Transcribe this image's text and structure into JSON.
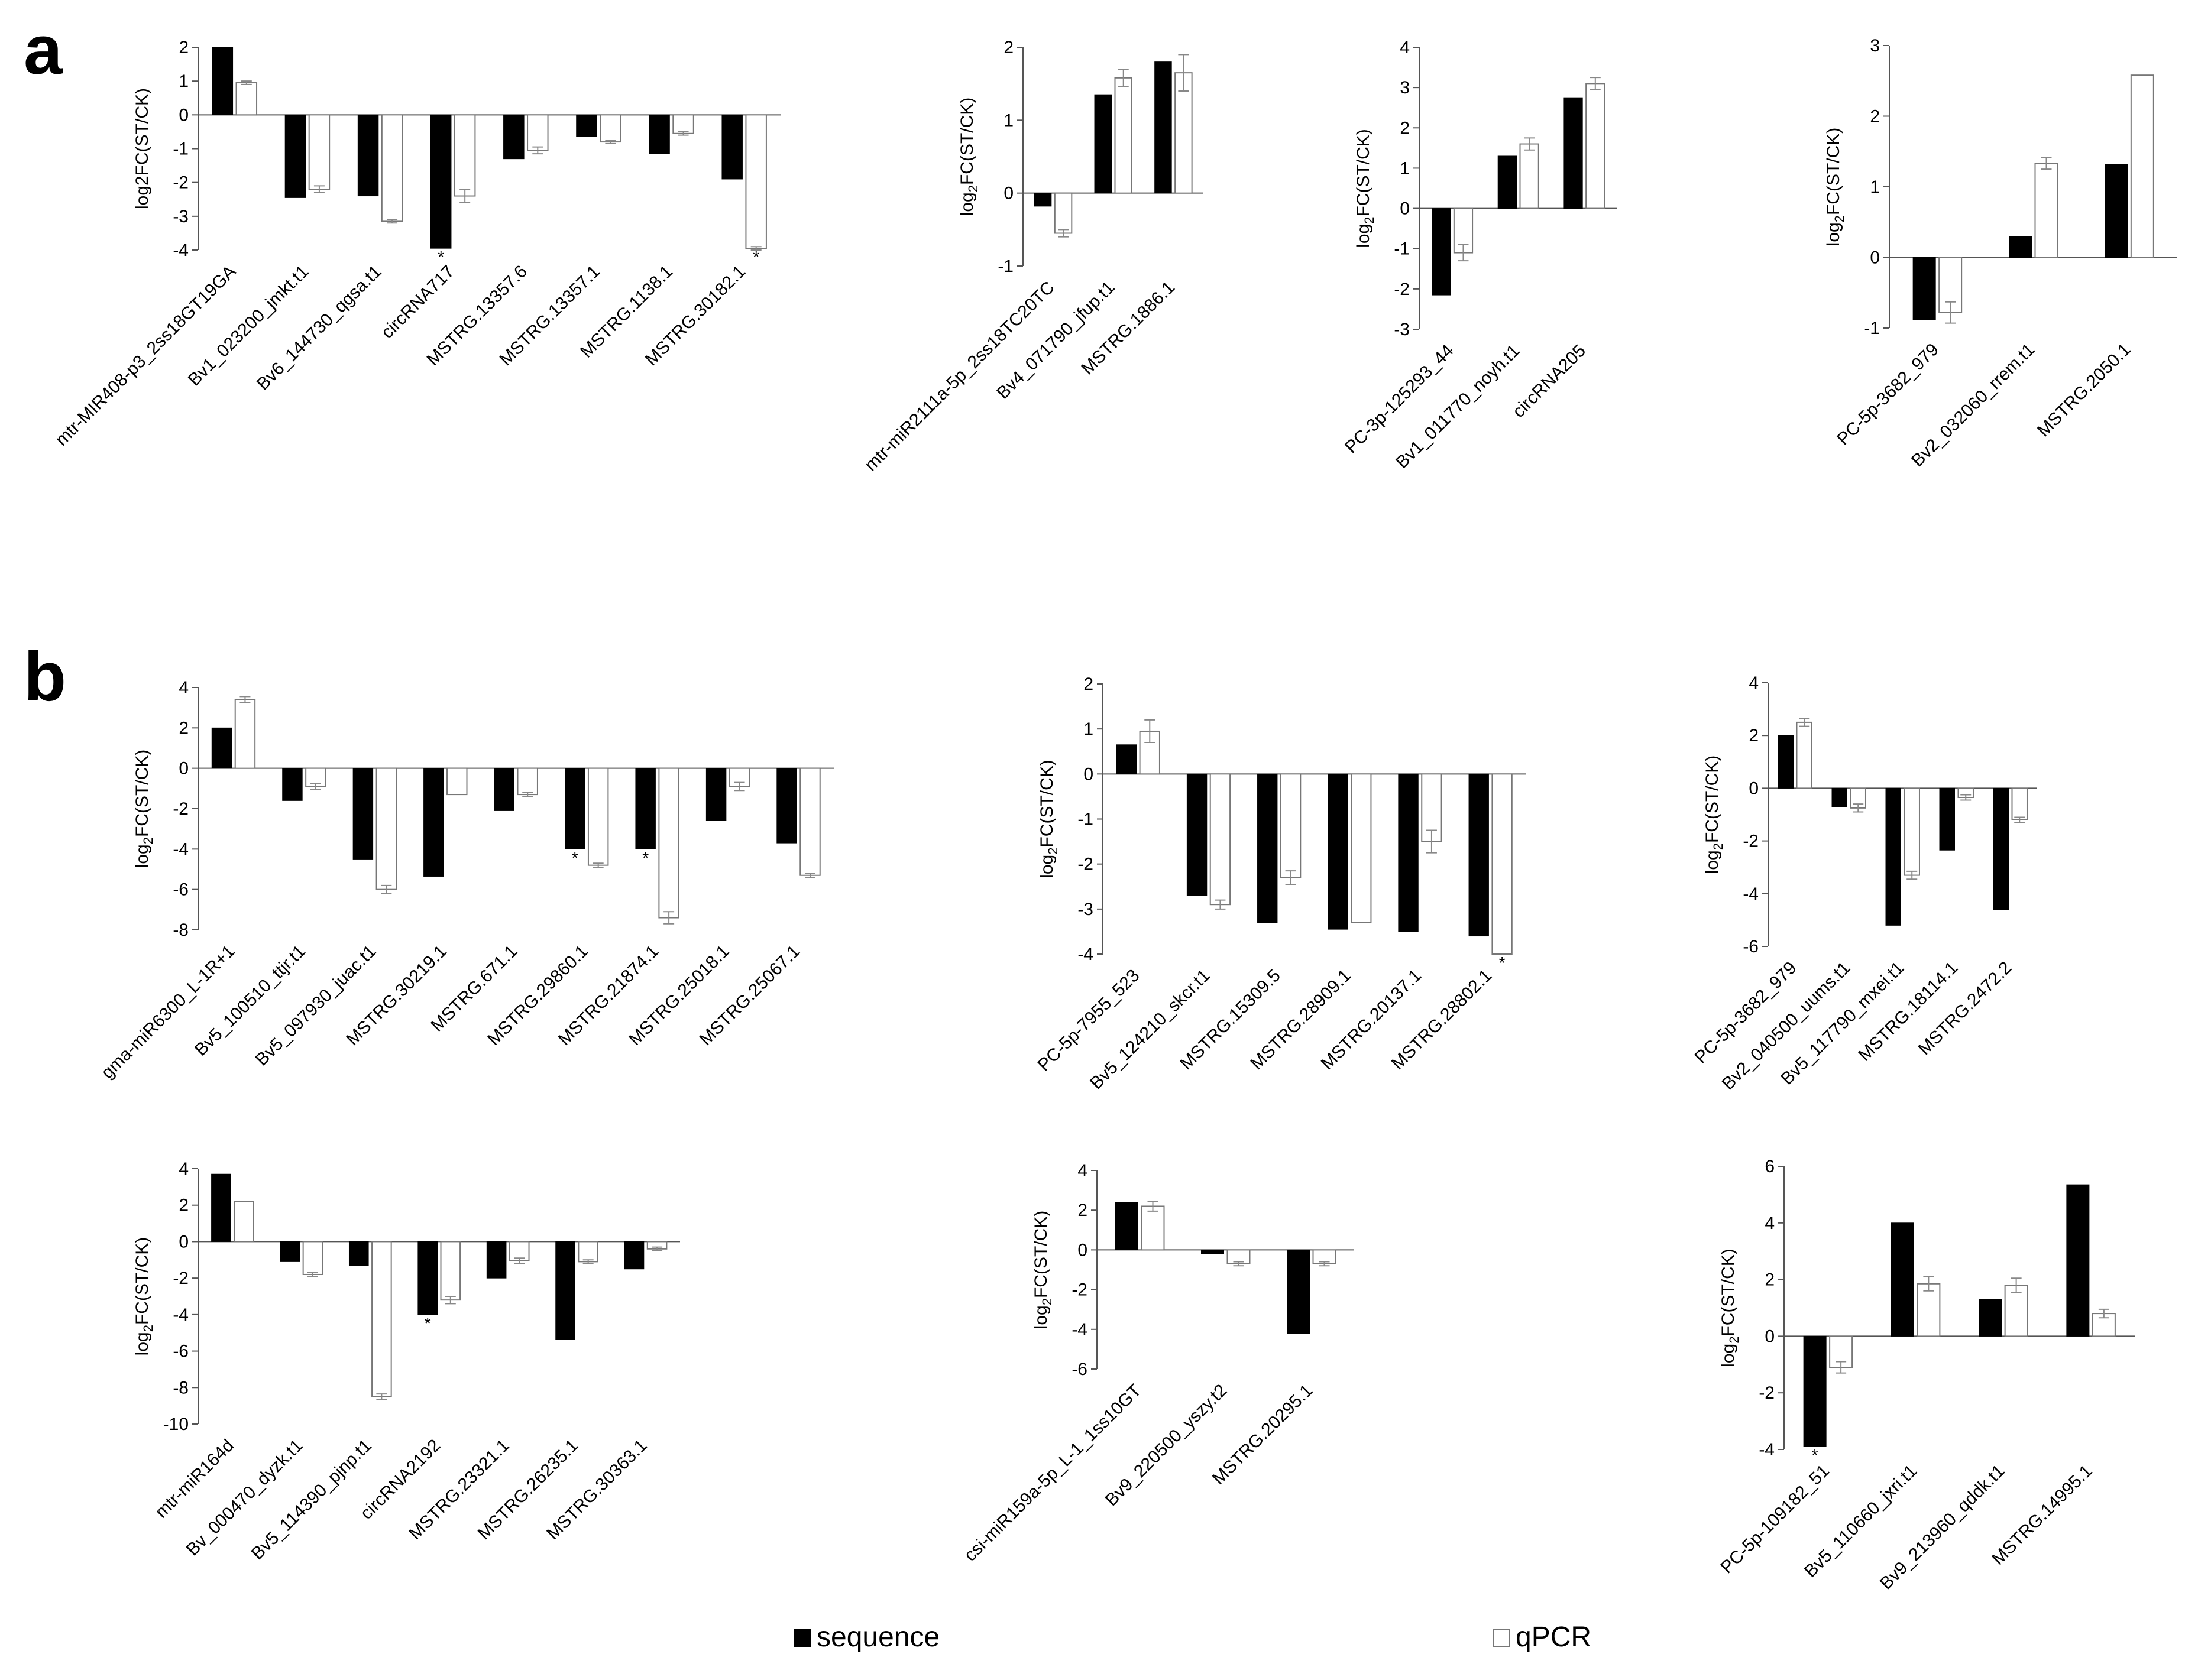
{
  "figure": {
    "panel_labels": [
      "a",
      "b"
    ],
    "legend": {
      "items": [
        {
          "label": "sequence",
          "fill": "#000000"
        },
        {
          "label": "qPCR",
          "fill": "#ffffff"
        }
      ]
    },
    "colors": {
      "sequence": "#000000",
      "qpcr": "#ffffff",
      "axis": "#555555"
    }
  },
  "chart_data": [
    {
      "panel": "a",
      "type": "bar",
      "ylabel": "log2FC(ST/CK)",
      "ylabel_sub": false,
      "ylim": [
        -4,
        2
      ],
      "yticks": [
        2,
        1,
        0,
        -1,
        -2,
        -3,
        -4
      ],
      "categories": [
        "mtr-MIR408-p3_2ss18GT19GA",
        "Bv1_023200_jmkt.t1",
        "Bv6_144730_qgsa.t1",
        "circRNA717",
        "MSTRG.13357.6",
        "MSTRG.13357.1",
        "MSTRG.1138.1",
        "MSTRG.30182.1"
      ],
      "series": [
        {
          "name": "sequence",
          "values": [
            2.0,
            -2.45,
            -2.4,
            -3.95,
            -1.3,
            -0.65,
            -1.15,
            -1.9
          ]
        },
        {
          "name": "qPCR",
          "values": [
            0.95,
            -2.2,
            -3.15,
            -2.4,
            -1.05,
            -0.8,
            -0.55,
            -3.95
          ]
        }
      ],
      "errors": [
        0.05,
        0.1,
        0.05,
        0.2,
        0.1,
        0.05,
        0.05,
        0.05
      ],
      "stars": [
        {
          "category": 3,
          "series": 0
        },
        {
          "category": 7,
          "series": 1
        }
      ]
    },
    {
      "panel": "a",
      "type": "bar",
      "ylabel": "log2FC(ST/CK)",
      "ylabel_sub": true,
      "ylim": [
        -1,
        2
      ],
      "yticks": [
        2,
        1,
        0,
        -1
      ],
      "categories": [
        "mtr-miR2111a-5p_2ss18TC20TC",
        "Bv4_071790_jfup.t1",
        "MSTRG.1886.1"
      ],
      "series": [
        {
          "name": "sequence",
          "values": [
            -0.18,
            1.35,
            1.8
          ]
        },
        {
          "name": "qPCR",
          "values": [
            -0.55,
            1.58,
            1.65
          ]
        }
      ],
      "errors": [
        0.05,
        0.12,
        0.25
      ],
      "stars": []
    },
    {
      "panel": "a",
      "type": "bar",
      "ylabel": "log2FC(ST/CK)",
      "ylabel_sub": true,
      "ylim": [
        -3,
        4
      ],
      "yticks": [
        4,
        3,
        2,
        1,
        0,
        -1,
        -2,
        -3
      ],
      "categories": [
        "PC-3p-125293_44",
        "Bv1_011770_noyh.t1",
        "circRNA205"
      ],
      "series": [
        {
          "name": "sequence",
          "values": [
            -2.15,
            1.3,
            2.75
          ]
        },
        {
          "name": "qPCR",
          "values": [
            -1.1,
            1.6,
            3.1
          ]
        }
      ],
      "errors": [
        0.2,
        0.15,
        0.15
      ],
      "stars": []
    },
    {
      "panel": "a",
      "type": "bar",
      "ylabel": "log2FC(ST/CK)",
      "ylabel_sub": true,
      "ylim": [
        -1,
        3
      ],
      "yticks": [
        3,
        2,
        1,
        0,
        -1
      ],
      "categories": [
        "PC-5p-3682_979",
        "Bv2_032060_rrem.t1",
        "MSTRG.2050.1"
      ],
      "series": [
        {
          "name": "sequence",
          "values": [
            -0.88,
            0.3,
            1.32
          ]
        },
        {
          "name": "qPCR",
          "values": [
            -0.78,
            1.33,
            2.58
          ]
        }
      ],
      "errors": [
        0.15,
        0.08,
        0.0
      ],
      "stars": []
    },
    {
      "panel": "b",
      "type": "bar",
      "ylabel": "log2FC(ST/CK)",
      "ylabel_sub": true,
      "ylim": [
        -8,
        4
      ],
      "yticks": [
        4,
        2,
        0,
        -2,
        -4,
        -6,
        -8
      ],
      "categories": [
        "gma-miR6300_L-1R+1",
        "Bv5_100510_ttjr.t1",
        "Bv5_097930_juac.t1",
        "MSTRG.30219.1",
        "MSTRG.671.1",
        "MSTRG.29860.1",
        "MSTRG.21874.1",
        "MSTRG.25018.1",
        "MSTRG.25067.1"
      ],
      "series": [
        {
          "name": "sequence",
          "values": [
            2.0,
            -1.6,
            -4.5,
            -5.35,
            -2.1,
            -4.0,
            -4.0,
            -2.6,
            -3.7
          ]
        },
        {
          "name": "qPCR",
          "values": [
            3.4,
            -0.9,
            -6.0,
            -1.3,
            -1.3,
            -4.8,
            -7.4,
            -0.9,
            -5.3
          ]
        }
      ],
      "errors": [
        0.15,
        0.15,
        0.2,
        0.0,
        0.1,
        0.1,
        0.3,
        0.2,
        0.1
      ],
      "stars": [
        {
          "category": 5,
          "series": 0
        },
        {
          "category": 6,
          "series": 0
        }
      ]
    },
    {
      "panel": "b",
      "type": "bar",
      "ylabel": "log2FC(ST/CK)",
      "ylabel_sub": true,
      "ylim": [
        -4,
        2
      ],
      "yticks": [
        2,
        1,
        0,
        -1,
        -2,
        -3,
        -4
      ],
      "categories": [
        "PC-5p-7955_523",
        "Bv5_124210_skcr.t1",
        "MSTRG.15309.5",
        "MSTRG.28909.1",
        "MSTRG.20137.1",
        "MSTRG.28802.1"
      ],
      "series": [
        {
          "name": "sequence",
          "values": [
            0.65,
            -2.7,
            -3.3,
            -3.45,
            -3.5,
            -3.6
          ]
        },
        {
          "name": "qPCR",
          "values": [
            0.95,
            -2.9,
            -2.3,
            -3.3,
            -1.5,
            -4.0
          ]
        }
      ],
      "errors": [
        0.25,
        0.1,
        0.15,
        0.0,
        0.25,
        0.0
      ],
      "stars": [
        {
          "category": 5,
          "series": 1
        }
      ]
    },
    {
      "panel": "b",
      "type": "bar",
      "ylabel": "log2FC(ST/CK)",
      "ylabel_sub": true,
      "ylim": [
        -6,
        4
      ],
      "yticks": [
        4,
        2,
        0,
        -2,
        -4,
        -6
      ],
      "categories": [
        "PC-5p-3682_979",
        "Bv2_040500_uums.t1",
        "Bv5_117790_mxei.t1",
        "MSTRG.18114.1",
        "MSTRG.2472.2"
      ],
      "series": [
        {
          "name": "sequence",
          "values": [
            2.0,
            -0.7,
            -5.2,
            -2.35,
            -4.6
          ]
        },
        {
          "name": "qPCR",
          "values": [
            2.5,
            -0.75,
            -3.3,
            -0.35,
            -1.2
          ]
        }
      ],
      "errors": [
        0.15,
        0.15,
        0.15,
        0.1,
        0.1
      ],
      "stars": []
    },
    {
      "panel": "b",
      "type": "bar",
      "ylabel": "log2FC(ST/CK)",
      "ylabel_sub": true,
      "ylim": [
        -10,
        4
      ],
      "yticks": [
        4,
        2,
        0,
        -2,
        -4,
        -6,
        -8,
        -10
      ],
      "categories": [
        "mtr-miR164d",
        "Bv_000470_dyzk.t1",
        "Bv5_114390_pjnp.t1",
        "circRNA2192",
        "MSTRG.23321.1",
        "MSTRG.26235.1",
        "MSTRG.30363.1"
      ],
      "series": [
        {
          "name": "sequence",
          "values": [
            3.7,
            -1.1,
            -1.3,
            -4.0,
            -2.0,
            -5.35,
            -1.5
          ]
        },
        {
          "name": "qPCR",
          "values": [
            2.2,
            -1.8,
            -8.5,
            -3.2,
            -1.05,
            -1.1,
            -0.4
          ]
        }
      ],
      "errors": [
        0.0,
        0.1,
        0.15,
        0.2,
        0.15,
        0.1,
        0.1
      ],
      "stars": [
        {
          "category": 3,
          "series": 0
        }
      ]
    },
    {
      "panel": "b",
      "type": "bar",
      "ylabel": "log2FC(ST/CK)",
      "ylabel_sub": true,
      "ylim": [
        -6,
        4
      ],
      "yticks": [
        4,
        2,
        0,
        -2,
        -4,
        -6
      ],
      "categories": [
        "csi-miR159a-5p_L-1_1ss10GT",
        "Bv9_220500_yszy.t2",
        "MSTRG.20295.1"
      ],
      "series": [
        {
          "name": "sequence",
          "values": [
            2.4,
            -0.2,
            -4.2
          ]
        },
        {
          "name": "qPCR",
          "values": [
            2.2,
            -0.7,
            -0.7
          ]
        }
      ],
      "errors": [
        0.25,
        0.1,
        0.1
      ],
      "stars": []
    },
    {
      "panel": "b",
      "type": "bar",
      "ylabel": "log2FC(ST/CK)",
      "ylabel_sub": true,
      "ylim": [
        -4,
        6
      ],
      "yticks": [
        6,
        4,
        2,
        0,
        -2,
        -4
      ],
      "categories": [
        "PC-5p-109182_51",
        "Bv5_110660_jxri.t1",
        "Bv9_213960_qddk.t1",
        "MSTRG.14995.1"
      ],
      "series": [
        {
          "name": "sequence",
          "values": [
            -3.9,
            4.0,
            1.3,
            5.35
          ]
        },
        {
          "name": "qPCR",
          "values": [
            -1.1,
            1.85,
            1.8,
            0.8
          ]
        }
      ],
      "errors": [
        0.2,
        0.25,
        0.25,
        0.15
      ],
      "stars": [
        {
          "category": 0,
          "series": 0
        }
      ]
    }
  ]
}
